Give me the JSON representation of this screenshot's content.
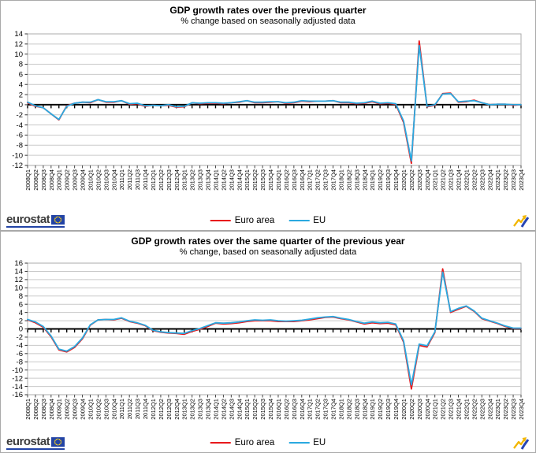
{
  "branding": {
    "logo_text": "eurostat"
  },
  "legend": {
    "entries": [
      {
        "label": "Euro area",
        "color": "#e8191c"
      },
      {
        "label": "EU",
        "color": "#2aa9e0"
      }
    ]
  },
  "colors": {
    "euro_area": "#e8191c",
    "eu": "#2aa9e0",
    "grid": "#c9c9c9",
    "plot_border": "#ababab",
    "zero_axis": "#000000",
    "panel_border": "#a9a9a9",
    "logo_blue": "#2243a5",
    "logo_star": "#ffd617",
    "icon_yellow": "#f2b705",
    "icon_blue": "#2746b4"
  },
  "chart_data": [
    {
      "type": "line",
      "title": "GDP growth rates over the previous quarter",
      "subtitle": "% change based on seasonally adjusted data",
      "ylim": [
        -12,
        14
      ],
      "ytick_step": 2,
      "grid": true,
      "legend_position": "bottom",
      "categories": [
        "2008Q1",
        "2008Q2",
        "2008Q3",
        "2008Q4",
        "2009Q1",
        "2009Q2",
        "2009Q3",
        "2009Q4",
        "2010Q1",
        "2010Q2",
        "2010Q3",
        "2010Q4",
        "2011Q1",
        "2011Q2",
        "2011Q3",
        "2011Q4",
        "2012Q1",
        "2012Q2",
        "2012Q3",
        "2012Q4",
        "2013Q1",
        "2013Q2",
        "2013Q3",
        "2013Q4",
        "2014Q1",
        "2014Q2",
        "2014Q3",
        "2014Q4",
        "2015Q1",
        "2015Q2",
        "2015Q3",
        "2015Q4",
        "2016Q1",
        "2016Q2",
        "2016Q3",
        "2016Q4",
        "2017Q1",
        "2017Q2",
        "2017Q3",
        "2017Q4",
        "2018Q1",
        "2018Q2",
        "2018Q3",
        "2018Q4",
        "2019Q1",
        "2019Q2",
        "2019Q3",
        "2019Q4",
        "2020Q1",
        "2020Q2",
        "2020Q3",
        "2020Q4",
        "2021Q1",
        "2021Q2",
        "2021Q3",
        "2021Q4",
        "2022Q1",
        "2022Q2",
        "2022Q3",
        "2022Q4",
        "2023Q1",
        "2023Q2",
        "2023Q3",
        "2023Q4"
      ],
      "series": [
        {
          "name": "Euro area",
          "color": "#e8191c",
          "values": [
            0.4,
            -0.3,
            -0.6,
            -1.8,
            -3.0,
            -0.2,
            0.3,
            0.5,
            0.4,
            1.0,
            0.5,
            0.5,
            0.8,
            0.1,
            0.2,
            -0.3,
            -0.1,
            -0.2,
            -0.1,
            -0.5,
            -0.4,
            0.4,
            0.2,
            0.3,
            0.3,
            0.2,
            0.4,
            0.5,
            0.8,
            0.4,
            0.4,
            0.5,
            0.6,
            0.3,
            0.4,
            0.7,
            0.6,
            0.7,
            0.7,
            0.8,
            0.4,
            0.4,
            0.2,
            0.3,
            0.6,
            0.2,
            0.3,
            0.1,
            -3.5,
            -11.6,
            12.6,
            -0.4,
            -0.1,
            2.2,
            2.3,
            0.5,
            0.6,
            0.9,
            0.4,
            0.0,
            0.1,
            0.1,
            -0.1,
            0.0
          ]
        },
        {
          "name": "EU",
          "color": "#2aa9e0",
          "values": [
            0.5,
            -0.2,
            -0.6,
            -1.8,
            -2.9,
            -0.3,
            0.3,
            0.5,
            0.5,
            1.0,
            0.6,
            0.6,
            0.8,
            0.2,
            0.3,
            -0.2,
            -0.1,
            -0.2,
            0.0,
            -0.4,
            -0.3,
            0.4,
            0.3,
            0.4,
            0.4,
            0.3,
            0.4,
            0.6,
            0.8,
            0.5,
            0.5,
            0.6,
            0.6,
            0.4,
            0.5,
            0.8,
            0.7,
            0.7,
            0.7,
            0.8,
            0.5,
            0.5,
            0.3,
            0.4,
            0.7,
            0.3,
            0.4,
            0.2,
            -3.2,
            -11.1,
            11.7,
            -0.3,
            0.0,
            2.1,
            2.2,
            0.6,
            0.7,
            0.8,
            0.4,
            0.0,
            0.1,
            0.1,
            0.0,
            0.0
          ]
        }
      ]
    },
    {
      "type": "line",
      "title": "GDP growth rates over the same quarter of the previous year",
      "subtitle": "% change, based on seasonally adjusted data",
      "ylim": [
        -16,
        16
      ],
      "ytick_step": 2,
      "grid": true,
      "legend_position": "bottom",
      "categories": [
        "2008Q1",
        "2008Q2",
        "2008Q3",
        "2008Q4",
        "2009Q1",
        "2009Q2",
        "2009Q3",
        "2009Q4",
        "2010Q1",
        "2010Q2",
        "2010Q3",
        "2010Q4",
        "2011Q1",
        "2011Q2",
        "2011Q3",
        "2011Q4",
        "2012Q1",
        "2012Q2",
        "2012Q3",
        "2012Q4",
        "2013Q1",
        "2013Q2",
        "2013Q3",
        "2013Q4",
        "2014Q1",
        "2014Q2",
        "2014Q3",
        "2014Q4",
        "2015Q1",
        "2015Q2",
        "2015Q3",
        "2015Q4",
        "2016Q1",
        "2016Q2",
        "2016Q3",
        "2016Q4",
        "2017Q1",
        "2017Q2",
        "2017Q3",
        "2017Q4",
        "2018Q1",
        "2018Q2",
        "2018Q3",
        "2018Q4",
        "2019Q1",
        "2019Q2",
        "2019Q3",
        "2019Q4",
        "2020Q1",
        "2020Q2",
        "2020Q3",
        "2020Q4",
        "2021Q1",
        "2021Q2",
        "2021Q3",
        "2021Q4",
        "2022Q1",
        "2022Q2",
        "2022Q3",
        "2022Q4",
        "2023Q1",
        "2023Q2",
        "2023Q3",
        "2023Q4"
      ],
      "series": [
        {
          "name": "Euro area",
          "color": "#e8191c",
          "values": [
            2.2,
            1.5,
            0.4,
            -1.9,
            -5.1,
            -5.6,
            -4.5,
            -2.4,
            0.9,
            2.2,
            2.3,
            2.2,
            2.6,
            1.8,
            1.4,
            0.8,
            -0.4,
            -0.8,
            -1.0,
            -1.1,
            -1.3,
            -0.6,
            -0.1,
            0.6,
            1.4,
            1.2,
            1.3,
            1.5,
            1.8,
            2.0,
            2.0,
            2.0,
            1.8,
            1.8,
            1.8,
            2.0,
            2.2,
            2.5,
            2.8,
            2.9,
            2.5,
            2.2,
            1.7,
            1.2,
            1.5,
            1.3,
            1.4,
            1.0,
            -3.2,
            -14.6,
            -4.0,
            -4.4,
            -0.9,
            14.6,
            4.0,
            4.8,
            5.5,
            4.3,
            2.5,
            1.9,
            1.3,
            0.6,
            0.1,
            0.1
          ]
        },
        {
          "name": "EU",
          "color": "#2aa9e0",
          "values": [
            2.3,
            1.7,
            0.6,
            -1.7,
            -4.9,
            -5.4,
            -4.3,
            -2.2,
            1.0,
            2.2,
            2.3,
            2.3,
            2.7,
            1.9,
            1.5,
            0.9,
            -0.3,
            -0.7,
            -0.9,
            -1.0,
            -1.1,
            -0.4,
            0.1,
            0.8,
            1.5,
            1.4,
            1.5,
            1.7,
            2.0,
            2.2,
            2.1,
            2.2,
            2.0,
            1.9,
            2.0,
            2.1,
            2.4,
            2.7,
            2.9,
            3.0,
            2.6,
            2.3,
            1.8,
            1.4,
            1.7,
            1.5,
            1.6,
            1.2,
            -2.9,
            -13.6,
            -3.7,
            -4.1,
            -0.7,
            13.8,
            4.2,
            5.0,
            5.6,
            4.4,
            2.6,
            2.0,
            1.4,
            0.7,
            0.2,
            0.2
          ]
        }
      ]
    }
  ]
}
